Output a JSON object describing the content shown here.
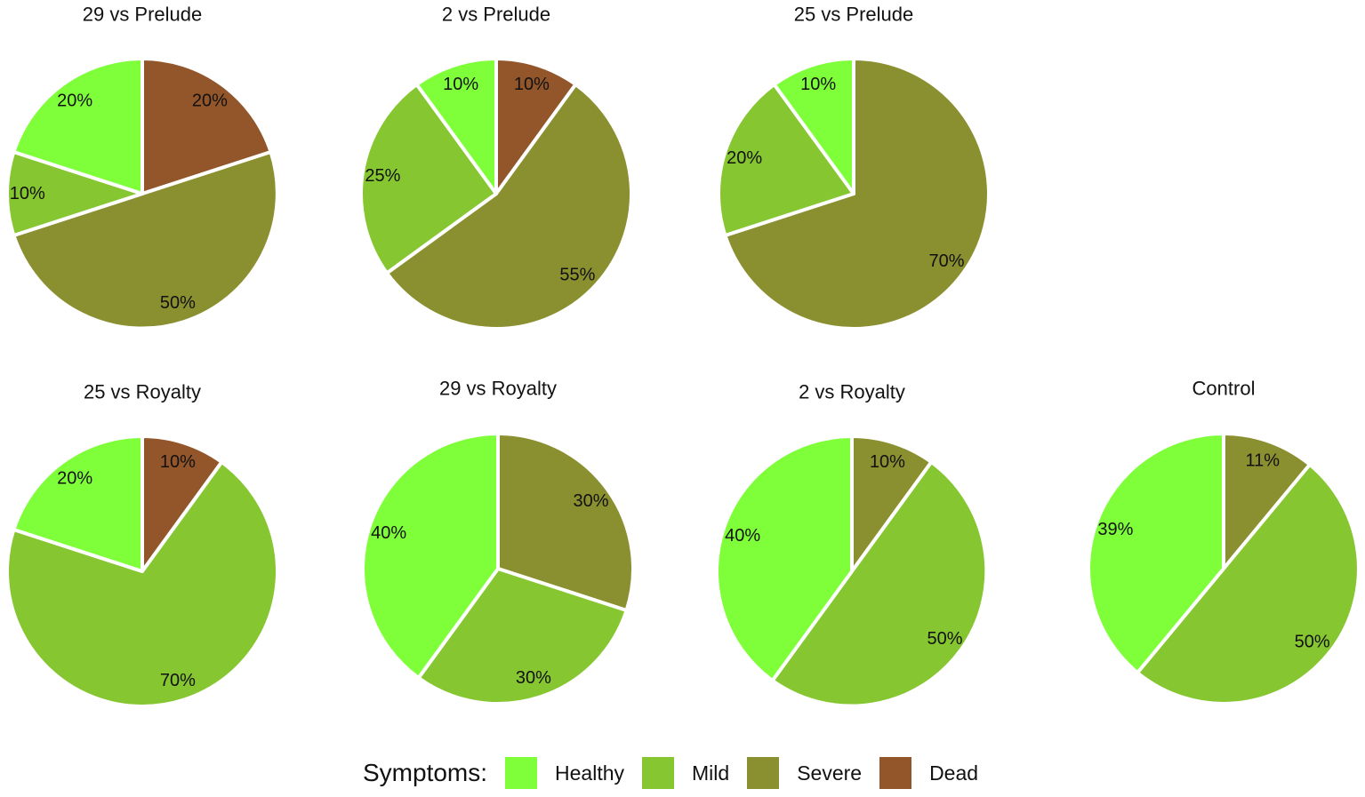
{
  "legend": {
    "title": "Symptoms:",
    "items": [
      {
        "name": "Healthy",
        "color": "#7fff3a"
      },
      {
        "name": "Mild",
        "color": "#86c630"
      },
      {
        "name": "Severe",
        "color": "#8a8f30"
      },
      {
        "name": "Dead",
        "color": "#93562a"
      }
    ]
  },
  "chart_data": [
    {
      "type": "pie",
      "title": "29 vs Prelude",
      "slices": [
        {
          "category": "Dead",
          "value": 20,
          "label": "20%"
        },
        {
          "category": "Severe",
          "value": 50,
          "label": "50%"
        },
        {
          "category": "Mild",
          "value": 10,
          "label": "10%"
        },
        {
          "category": "Healthy",
          "value": 20,
          "label": "20%"
        }
      ]
    },
    {
      "type": "pie",
      "title": "2 vs Prelude",
      "slices": [
        {
          "category": "Dead",
          "value": 10,
          "label": "10%"
        },
        {
          "category": "Severe",
          "value": 55,
          "label": "55%"
        },
        {
          "category": "Mild",
          "value": 25,
          "label": "25%"
        },
        {
          "category": "Healthy",
          "value": 10,
          "label": "10%"
        }
      ]
    },
    {
      "type": "pie",
      "title": "25 vs Prelude",
      "slices": [
        {
          "category": "Severe",
          "value": 70,
          "label": "70%"
        },
        {
          "category": "Mild",
          "value": 20,
          "label": "20%"
        },
        {
          "category": "Healthy",
          "value": 10,
          "label": "10%"
        }
      ]
    },
    {
      "type": "pie",
      "title": "25 vs Royalty",
      "slices": [
        {
          "category": "Dead",
          "value": 10,
          "label": "10%"
        },
        {
          "category": "Mild",
          "value": 70,
          "label": "70%"
        },
        {
          "category": "Healthy",
          "value": 20,
          "label": "20%"
        }
      ]
    },
    {
      "type": "pie",
      "title": "29 vs Royalty",
      "slices": [
        {
          "category": "Severe",
          "value": 30,
          "label": "30%"
        },
        {
          "category": "Mild",
          "value": 30,
          "label": "30%"
        },
        {
          "category": "Healthy",
          "value": 40,
          "label": "40%"
        }
      ]
    },
    {
      "type": "pie",
      "title": "2 vs Royalty",
      "slices": [
        {
          "category": "Severe",
          "value": 10,
          "label": "10%"
        },
        {
          "category": "Mild",
          "value": 50,
          "label": "50%"
        },
        {
          "category": "Healthy",
          "value": 40,
          "label": "40%"
        }
      ]
    },
    {
      "type": "pie",
      "title": "Control",
      "slices": [
        {
          "category": "Severe",
          "value": 11,
          "label": "11%"
        },
        {
          "category": "Mild",
          "value": 50,
          "label": "50%"
        },
        {
          "category": "Healthy",
          "value": 39,
          "label": "39%"
        }
      ]
    }
  ]
}
